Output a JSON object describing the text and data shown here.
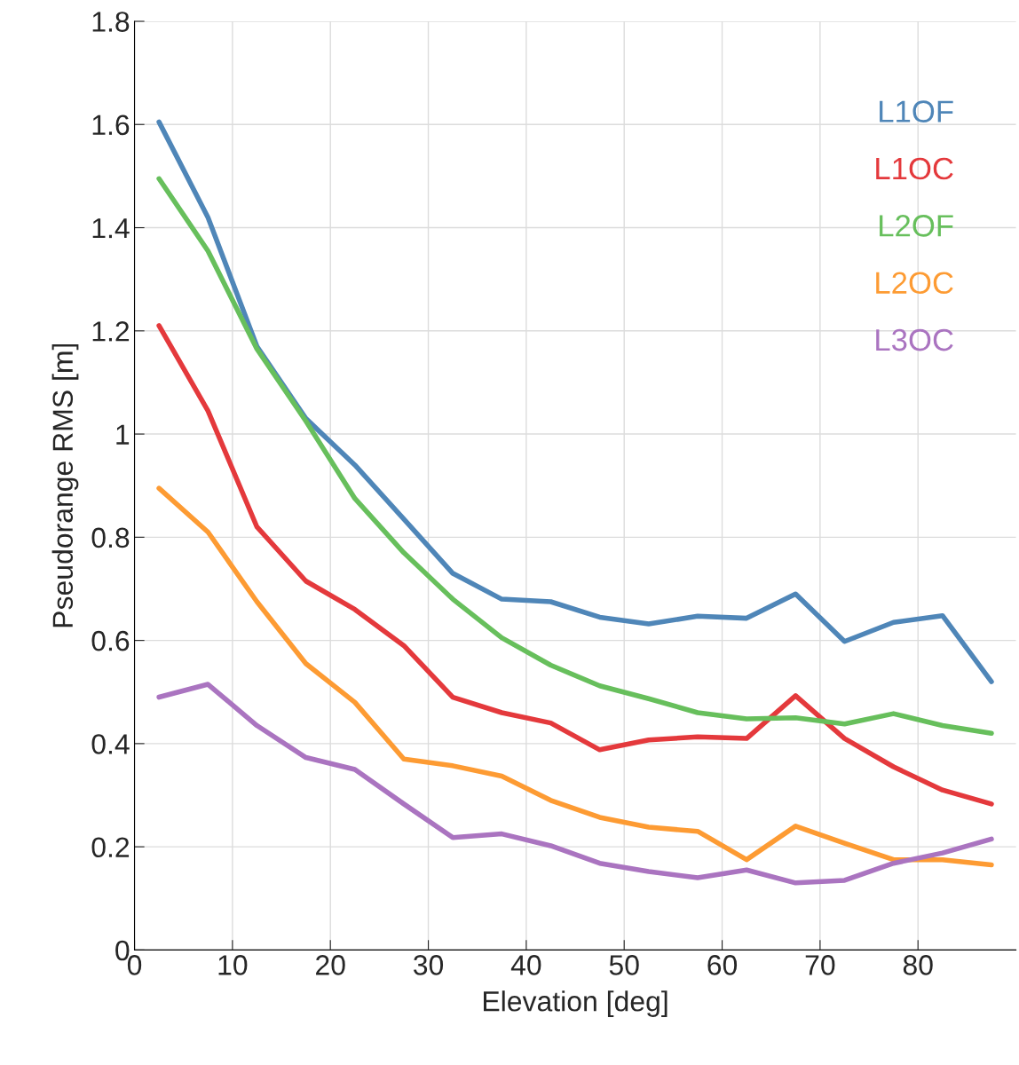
{
  "chart_data": {
    "type": "line",
    "xlabel": "Elevation [deg]",
    "ylabel": "Pseudorange RMS [m]",
    "x": [
      2.5,
      7.5,
      12.5,
      17.5,
      22.5,
      27.5,
      32.5,
      37.5,
      42.5,
      47.5,
      52.5,
      57.5,
      62.5,
      67.5,
      72.5,
      77.5,
      82.5,
      87.5
    ],
    "series": [
      {
        "name": "L1OF",
        "color": "#4f86b8",
        "values": [
          1.605,
          1.42,
          1.17,
          1.03,
          0.94,
          0.835,
          0.73,
          0.68,
          0.675,
          0.645,
          0.632,
          0.647,
          0.643,
          0.69,
          0.598,
          0.635,
          0.648,
          0.52
        ]
      },
      {
        "name": "L1OC",
        "color": "#e4393c",
        "values": [
          1.21,
          1.045,
          0.82,
          0.715,
          0.66,
          0.59,
          0.49,
          0.46,
          0.44,
          0.388,
          0.407,
          0.413,
          0.41,
          0.493,
          0.41,
          0.355,
          0.31,
          0.283
        ]
      },
      {
        "name": "L2OF",
        "color": "#67bf5c",
        "values": [
          1.495,
          1.355,
          1.165,
          1.025,
          0.875,
          0.77,
          0.68,
          0.605,
          0.552,
          0.512,
          0.487,
          0.46,
          0.448,
          0.45,
          0.438,
          0.458,
          0.435,
          0.42
        ]
      },
      {
        "name": "L2OC",
        "color": "#fd9b33",
        "values": [
          0.895,
          0.81,
          0.675,
          0.555,
          0.48,
          0.37,
          0.357,
          0.337,
          0.29,
          0.257,
          0.238,
          0.23,
          0.175,
          0.24,
          0.207,
          0.175,
          0.175,
          0.165
        ]
      },
      {
        "name": "L3OC",
        "color": "#aa74c0",
        "values": [
          0.49,
          0.515,
          0.435,
          0.373,
          0.35,
          0.283,
          0.218,
          0.225,
          0.202,
          0.168,
          0.152,
          0.14,
          0.155,
          0.13,
          0.135,
          0.168,
          0.188,
          0.215
        ]
      }
    ],
    "xlim": [
      0,
      90
    ],
    "xticks": [
      0,
      10,
      20,
      30,
      40,
      50,
      60,
      70,
      80
    ],
    "ylim": [
      0,
      1.8
    ],
    "yticks": [
      0,
      0.2,
      0.4,
      0.6,
      0.8,
      1,
      1.2,
      1.4,
      1.6,
      1.8
    ],
    "grid": true,
    "legend": "top right"
  }
}
